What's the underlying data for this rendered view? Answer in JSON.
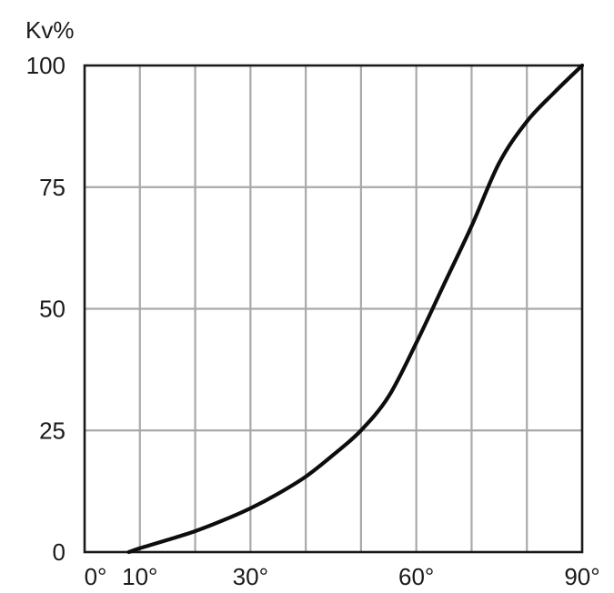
{
  "chart_data": {
    "type": "line",
    "title": "",
    "xlabel": "",
    "ylabel": "Kv%",
    "xlim": [
      0,
      90
    ],
    "ylim": [
      0,
      100
    ],
    "grid": true,
    "x_ticks": [
      {
        "value": 0,
        "label": "0°"
      },
      {
        "value": 10,
        "label": "10°"
      },
      {
        "value": 30,
        "label": "30°"
      },
      {
        "value": 60,
        "label": "60°"
      },
      {
        "value": 90,
        "label": "90°"
      }
    ],
    "y_ticks": [
      {
        "value": 0,
        "label": "0"
      },
      {
        "value": 25,
        "label": "25"
      },
      {
        "value": 50,
        "label": "50"
      },
      {
        "value": 75,
        "label": "75"
      },
      {
        "value": 100,
        "label": "100"
      }
    ],
    "x_gridlines": [
      10,
      20,
      30,
      40,
      50,
      60,
      70,
      80
    ],
    "series": [
      {
        "x": [
          8,
          10,
          15,
          20,
          25,
          30,
          35,
          40,
          45,
          50,
          55,
          60,
          65,
          70,
          75,
          80,
          85,
          90
        ],
        "y": [
          0,
          0.8,
          2.5,
          4.3,
          6.5,
          9,
          12,
          15.5,
          20,
          25,
          32,
          43,
          55,
          67,
          80,
          88.5,
          94.5,
          100
        ]
      }
    ]
  }
}
